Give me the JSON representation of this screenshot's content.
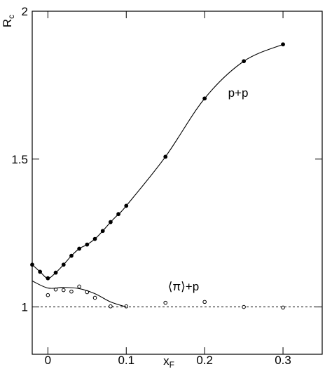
{
  "chart_data": {
    "type": "scatter",
    "xlabel": "x",
    "xlabel_sub": "F",
    "ylabel": "R",
    "ylabel_sub": "c",
    "xlim": [
      -0.02,
      0.35
    ],
    "ylim": [
      0.84,
      2
    ],
    "xticks": [
      0,
      0.1,
      0.2,
      0.3
    ],
    "yticks": [
      1,
      1.5,
      2
    ],
    "reference_line": 1,
    "series": [
      {
        "name": "p+p",
        "color": "#000000",
        "marker": "filled",
        "curve": true,
        "x": [
          -0.02,
          -0.01,
          0,
          0.01,
          0.02,
          0.03,
          0.04,
          0.05,
          0.06,
          0.07,
          0.08,
          0.09,
          0.1,
          0.15,
          0.2,
          0.25,
          0.3
        ],
        "values": [
          1.143,
          1.119,
          1.097,
          1.116,
          1.143,
          1.173,
          1.197,
          1.211,
          1.23,
          1.257,
          1.287,
          1.314,
          1.342,
          1.508,
          1.705,
          1.831,
          1.888
        ]
      },
      {
        "name": "⟨π⟩+p",
        "color": "#000000",
        "marker": "open",
        "curve": false,
        "x": [
          0,
          0.01,
          0.02,
          0.03,
          0.04,
          0.05,
          0.06,
          0.08,
          0.1,
          0.15,
          0.2,
          0.25,
          0.3
        ],
        "values": [
          1.04,
          1.059,
          1.057,
          1.052,
          1.069,
          1.05,
          1.031,
          1.002,
          1.002,
          1.014,
          1.017,
          1.0,
          0.998
        ]
      },
      {
        "color": "#000000",
        "marker": "none",
        "curve": true,
        "x": [
          -0.02,
          0,
          0.02,
          0.04,
          0.06,
          0.08,
          0.1
        ],
        "values": [
          1.088,
          1.064,
          1.066,
          1.062,
          1.045,
          1.017,
          1.0
        ]
      }
    ]
  }
}
